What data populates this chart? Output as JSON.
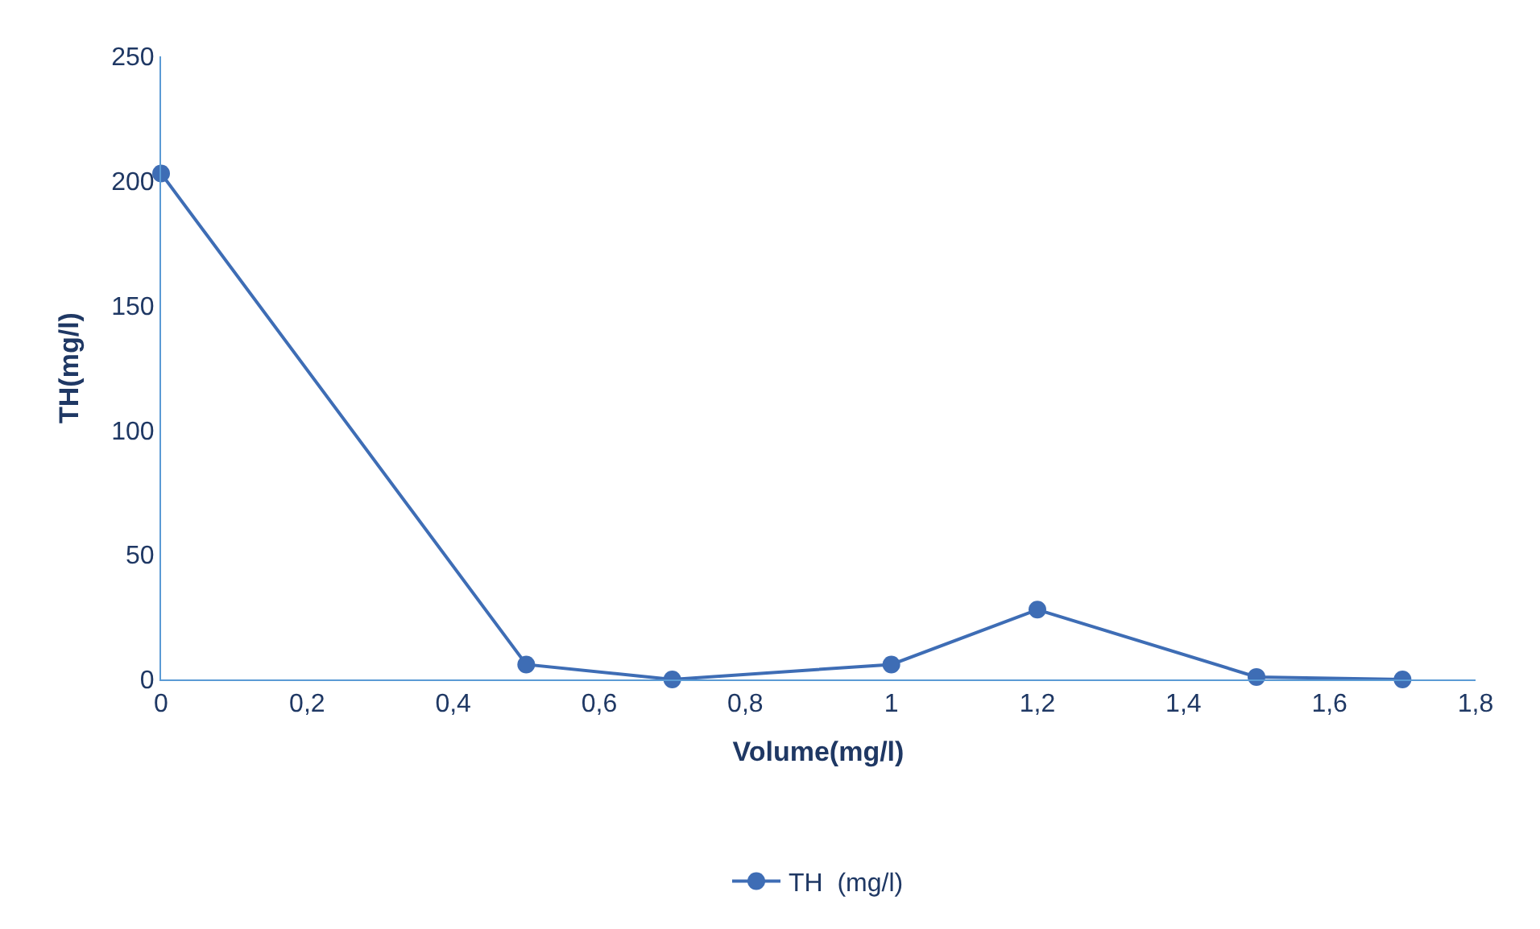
{
  "chart_data": {
    "type": "line",
    "xlabel": "Volume(mg/l)",
    "ylabel": "TH(mg/l)",
    "x": [
      0,
      0.5,
      0.7,
      1,
      1.2,
      1.5,
      1.7
    ],
    "series": [
      {
        "name": "TH  (mg/l)",
        "color": "#3e6db5",
        "values": [
          203,
          6,
          0,
          6,
          28,
          1,
          0
        ]
      }
    ],
    "xlim": [
      0,
      1.8
    ],
    "xticks": [
      {
        "value": 0,
        "label": "0"
      },
      {
        "value": 0.2,
        "label": "0,2"
      },
      {
        "value": 0.4,
        "label": "0,4"
      },
      {
        "value": 0.6,
        "label": "0,6"
      },
      {
        "value": 0.8,
        "label": "0,8"
      },
      {
        "value": 1,
        "label": "1"
      },
      {
        "value": 1.2,
        "label": "1,2"
      },
      {
        "value": 1.4,
        "label": "1,4"
      },
      {
        "value": 1.6,
        "label": "1,6"
      },
      {
        "value": 1.8,
        "label": "1,8"
      }
    ],
    "ylim": [
      0,
      250
    ],
    "yticks": [
      0,
      50,
      100,
      150,
      200,
      250
    ],
    "legend": "bottom",
    "marker": "circle",
    "line_style": "solid"
  }
}
